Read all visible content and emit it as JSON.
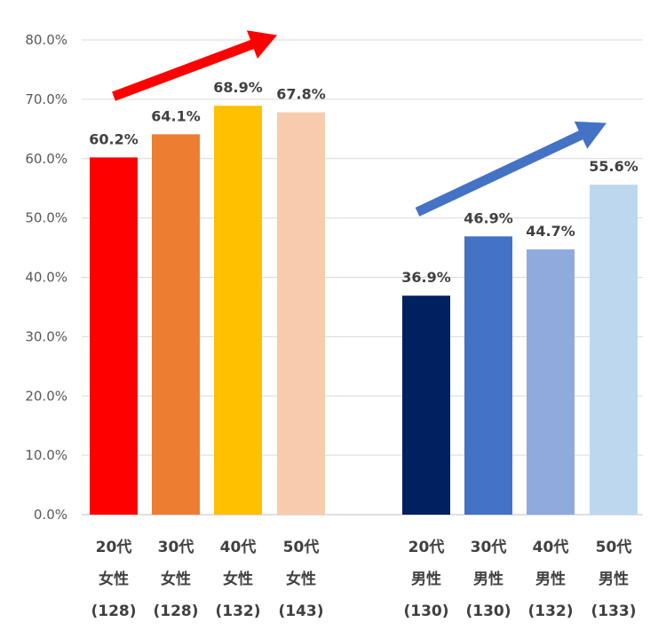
{
  "chart_data": {
    "type": "bar",
    "ylim": [
      0,
      80
    ],
    "y_tick_step": 10,
    "y_tick_labels": [
      "0.0%",
      "10.0%",
      "20.0%",
      "30.0%",
      "40.0%",
      "50.0%",
      "60.0%",
      "70.0%",
      "80.0%"
    ],
    "grid": true,
    "categories": [
      [
        "20代",
        "女性",
        "(128)"
      ],
      [
        "30代",
        "女性",
        "(128)"
      ],
      [
        "40代",
        "女性",
        "(132)"
      ],
      [
        "50代",
        "女性",
        "(143)"
      ],
      [
        "20代",
        "男性",
        "(130)"
      ],
      [
        "30代",
        "男性",
        "(130)"
      ],
      [
        "40代",
        "男性",
        "(132)"
      ],
      [
        "50代",
        "男性",
        "(133)"
      ]
    ],
    "values": [
      60.2,
      64.1,
      68.9,
      67.8,
      36.9,
      46.9,
      44.7,
      55.6
    ],
    "data_labels": [
      "60.2%",
      "64.1%",
      "68.9%",
      "67.8%",
      "36.9%",
      "46.9%",
      "44.7%",
      "55.6%"
    ],
    "bar_colors": [
      "#ff0000",
      "#ed7d31",
      "#ffc000",
      "#f8cbad",
      "#002060",
      "#4472c4",
      "#8faadc",
      "#bdd7ee"
    ],
    "trend_arrows": [
      {
        "group": "女性",
        "color": "#ff0000",
        "from_value": 70.5,
        "to_value": 80.8
      },
      {
        "group": "男性",
        "color": "#4472c4",
        "from_value": 51.0,
        "to_value": 66.0
      }
    ]
  }
}
